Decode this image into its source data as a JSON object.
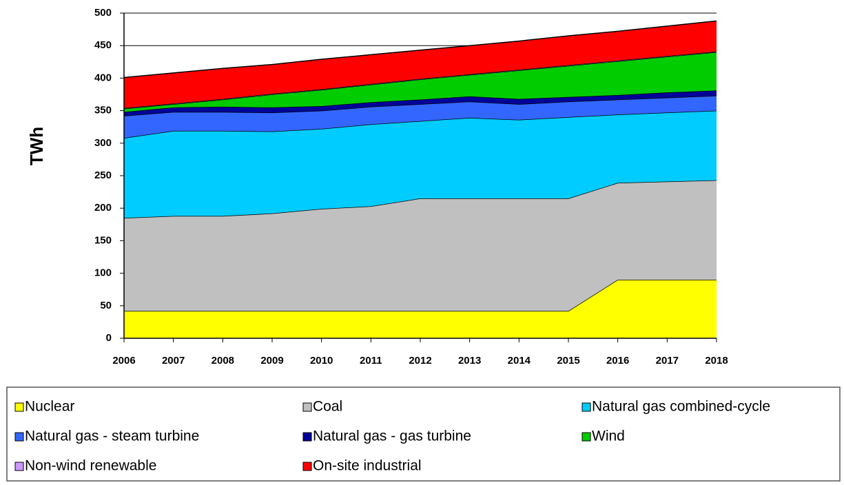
{
  "chart_data": {
    "type": "stacked_area",
    "y_label": "TWh",
    "x": [
      2006,
      2007,
      2008,
      2009,
      2010,
      2011,
      2012,
      2013,
      2014,
      2015,
      2016,
      2017,
      2018
    ],
    "xlim": [
      2006,
      2018
    ],
    "ylim": [
      0,
      500
    ],
    "yticks": [
      0,
      50,
      100,
      150,
      200,
      250,
      300,
      350,
      400,
      450,
      500
    ],
    "grid": true,
    "legend": "bottom",
    "series": [
      {
        "name": "Nuclear",
        "color": "#ffff00",
        "values": [
          42,
          42,
          42,
          42,
          42,
          42,
          42,
          42,
          42,
          42,
          90,
          90,
          90
        ]
      },
      {
        "name": "Coal",
        "color": "#c0c0c0",
        "values": [
          143,
          146,
          146,
          150,
          157,
          161,
          173,
          173,
          173,
          173,
          149,
          151,
          153
        ]
      },
      {
        "name": "Natural gas combined-cycle",
        "color": "#00ccff",
        "values": [
          123,
          131,
          131,
          126,
          123,
          126,
          119,
          124,
          121,
          125,
          105,
          106,
          107
        ]
      },
      {
        "name": "Natural gas - steam turbine",
        "color": "#3366ff",
        "values": [
          34,
          29,
          29,
          29,
          28,
          27,
          26,
          25,
          24,
          24,
          23,
          23,
          23
        ]
      },
      {
        "name": "Natural gas - gas turbine",
        "color": "#000099",
        "values": [
          6,
          7,
          8,
          8,
          7,
          7,
          7,
          8,
          8,
          7,
          7,
          8,
          8
        ]
      },
      {
        "name": "Wind",
        "color": "#00cc00",
        "values": [
          5,
          5,
          11,
          20,
          25,
          27,
          31,
          33,
          44,
          48,
          52,
          55,
          59
        ]
      },
      {
        "name": "Non-wind renewable",
        "color": "#cc99ff",
        "values": [
          1,
          1,
          1,
          1,
          1,
          1,
          1,
          1,
          1,
          1,
          1,
          1,
          1
        ]
      },
      {
        "name": "On-site industrial",
        "color": "#ff0000",
        "values": [
          47,
          47,
          47,
          45,
          46,
          45,
          44,
          44,
          44,
          45,
          45,
          46,
          47
        ]
      }
    ]
  }
}
